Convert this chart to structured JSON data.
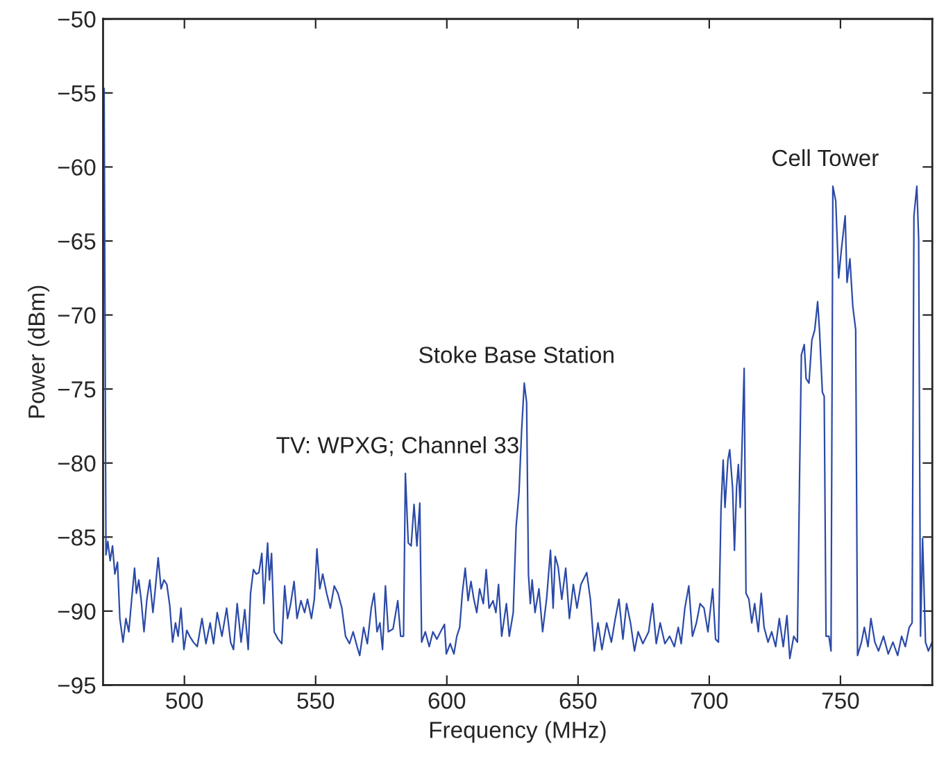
{
  "chart_data": {
    "type": "line",
    "xlabel": "Frequency (MHz)",
    "ylabel": "Power (dBm)",
    "xlim": [
      469,
      785
    ],
    "ylim": [
      -95,
      -50
    ],
    "xticks": [
      500,
      550,
      600,
      650,
      700,
      750
    ],
    "yticks": [
      -95,
      -90,
      -85,
      -80,
      -75,
      -70,
      -65,
      -60,
      -55,
      -50
    ],
    "grid": false,
    "legend": false,
    "marker": "none",
    "line_style": "solid",
    "annotations": [
      {
        "text": "TV: WPXG; Channel 33",
        "x": 584.2,
        "y": -80.7
      },
      {
        "text": "Stoke Base Station",
        "x": 629.5,
        "y": -74.6
      },
      {
        "text": "Cell Tower",
        "x": 747.1,
        "y": -61.3
      }
    ],
    "series": [
      {
        "color": "#2b4aa8",
        "x": [
          469.4,
          470.1,
          470.8,
          471.7,
          472.6,
          473.5,
          474.5,
          475.4,
          476.6,
          477.7,
          478.8,
          479.9,
          481.0,
          481.7,
          482.6,
          483.5,
          484.6,
          485.7,
          486.8,
          488.0,
          488.9,
          490.0,
          491.1,
          492.2,
          493.3,
          494.4,
          495.5,
          496.6,
          497.6,
          498.7,
          499.8,
          500.9,
          502.0,
          503.4,
          504.9,
          506.7,
          508.2,
          509.8,
          511.1,
          512.5,
          514.3,
          516.1,
          517.6,
          518.7,
          520.1,
          521.6,
          523.0,
          524.3,
          525.2,
          526.3,
          527.4,
          528.4,
          529.5,
          530.3,
          531.7,
          532.4,
          533.2,
          534.2,
          535.7,
          537.1,
          538.2,
          539.3,
          540.4,
          541.8,
          542.9,
          544.4,
          545.8,
          546.9,
          548.4,
          549.5,
          550.5,
          551.6,
          552.7,
          554.2,
          555.6,
          557.1,
          558.5,
          560.0,
          561.4,
          562.9,
          564.3,
          565.8,
          566.8,
          568.3,
          569.7,
          571.2,
          572.3,
          573.4,
          574.5,
          575.5,
          576.6,
          577.7,
          579.5,
          581.3,
          582.4,
          583.5,
          584.2,
          585.3,
          586.4,
          587.5,
          588.6,
          589.7,
          590.4,
          591.8,
          593.3,
          594.7,
          596.2,
          597.6,
          599.1,
          599.8,
          601.3,
          602.7,
          603.8,
          604.9,
          605.9,
          607.0,
          608.1,
          609.2,
          610.3,
          611.4,
          612.5,
          613.9,
          615.0,
          616.1,
          617.6,
          618.7,
          619.7,
          620.9,
          622.7,
          623.8,
          625.3,
          626.4,
          627.5,
          628.5,
          629.5,
          630.4,
          631.1,
          631.8,
          632.5,
          633.6,
          635.1,
          636.5,
          638.0,
          639.5,
          640.5,
          641.3,
          642.4,
          643.8,
          645.3,
          646.7,
          648.2,
          649.6,
          651.1,
          653.3,
          654.7,
          656.2,
          657.6,
          659.1,
          660.9,
          662.7,
          664.2,
          665.6,
          667.1,
          668.5,
          670.0,
          671.5,
          672.9,
          674.7,
          676.9,
          678.4,
          679.8,
          681.3,
          683.1,
          684.9,
          686.7,
          688.2,
          689.3,
          690.7,
          692.2,
          693.6,
          695.1,
          696.5,
          698.0,
          699.5,
          701.3,
          702.4,
          703.5,
          704.5,
          705.3,
          706.0,
          707.1,
          707.8,
          708.9,
          709.6,
          710.4,
          711.1,
          711.8,
          712.5,
          713.3,
          714.0,
          715.1,
          716.2,
          717.3,
          718.7,
          719.8,
          720.9,
          722.4,
          723.8,
          725.3,
          726.7,
          728.2,
          729.6,
          730.7,
          732.2,
          733.6,
          734.4,
          735.1,
          736.2,
          736.9,
          738.0,
          739.1,
          740.2,
          741.3,
          742.0,
          743.1,
          743.8,
          744.5,
          745.6,
          746.4,
          747.1,
          748.2,
          749.3,
          750.4,
          751.8,
          752.5,
          753.6,
          754.7,
          755.8,
          756.5,
          758.0,
          759.1,
          760.5,
          761.6,
          763.1,
          764.5,
          766.4,
          768.2,
          770.0,
          771.8,
          773.3,
          774.7,
          776.2,
          777.3,
          778.0,
          779.1,
          779.8,
          780.5,
          781.3,
          782.4,
          783.5,
          784.9
        ],
        "values": [
          -54.7,
          -86.2,
          -85.3,
          -86.6,
          -85.6,
          -87.5,
          -86.7,
          -90.5,
          -92.1,
          -90.5,
          -91.4,
          -89.2,
          -87.1,
          -88.8,
          -87.9,
          -89.2,
          -91.4,
          -89.2,
          -87.9,
          -90.1,
          -88.5,
          -86.4,
          -88.5,
          -87.9,
          -88.2,
          -89.6,
          -92.1,
          -90.8,
          -91.7,
          -89.8,
          -92.6,
          -91.3,
          -91.7,
          -92.1,
          -92.4,
          -90.5,
          -92.2,
          -90.8,
          -92.2,
          -90.1,
          -91.7,
          -89.8,
          -92.1,
          -92.6,
          -89.5,
          -92.1,
          -89.9,
          -92.6,
          -88.8,
          -87.2,
          -87.5,
          -87.4,
          -86.1,
          -89.5,
          -85.4,
          -87.9,
          -86.1,
          -91.4,
          -91.9,
          -92.2,
          -88.3,
          -90.5,
          -89.6,
          -88.0,
          -90.5,
          -89.3,
          -90.1,
          -89.2,
          -90.5,
          -89.2,
          -85.8,
          -88.5,
          -87.5,
          -88.8,
          -89.8,
          -88.3,
          -88.8,
          -89.8,
          -91.7,
          -92.2,
          -91.4,
          -92.4,
          -93.0,
          -91.1,
          -92.2,
          -89.8,
          -88.8,
          -91.4,
          -90.8,
          -92.6,
          -88.3,
          -91.4,
          -91.2,
          -89.3,
          -91.7,
          -91.7,
          -80.7,
          -85.4,
          -85.6,
          -82.8,
          -85.6,
          -82.7,
          -92.1,
          -91.4,
          -92.4,
          -91.4,
          -91.9,
          -91.4,
          -90.9,
          -92.9,
          -92.2,
          -92.9,
          -91.7,
          -91.1,
          -88.8,
          -87.1,
          -89.3,
          -88.0,
          -89.2,
          -90.1,
          -88.5,
          -89.5,
          -87.2,
          -89.8,
          -89.3,
          -90.1,
          -88.2,
          -91.7,
          -89.5,
          -91.7,
          -90.1,
          -84.3,
          -82.0,
          -77.8,
          -74.6,
          -75.9,
          -87.5,
          -89.5,
          -87.9,
          -90.1,
          -88.5,
          -91.4,
          -89.2,
          -85.9,
          -89.8,
          -86.3,
          -87.0,
          -89.2,
          -87.1,
          -90.5,
          -88.2,
          -89.8,
          -88.2,
          -87.4,
          -89.2,
          -92.7,
          -90.8,
          -92.6,
          -90.8,
          -92.1,
          -90.5,
          -89.2,
          -91.9,
          -89.5,
          -90.8,
          -92.7,
          -91.4,
          -92.2,
          -91.4,
          -89.5,
          -92.2,
          -90.8,
          -92.2,
          -91.7,
          -92.4,
          -91.1,
          -92.2,
          -89.8,
          -88.3,
          -91.7,
          -90.8,
          -89.5,
          -89.8,
          -91.4,
          -88.5,
          -91.9,
          -92.1,
          -83.0,
          -79.8,
          -83.0,
          -79.8,
          -79.1,
          -81.7,
          -85.9,
          -81.7,
          -80.1,
          -83.0,
          -78.8,
          -73.6,
          -88.8,
          -89.2,
          -90.8,
          -89.5,
          -91.4,
          -88.8,
          -91.1,
          -92.1,
          -91.4,
          -92.4,
          -90.5,
          -92.4,
          -90.3,
          -93.2,
          -91.7,
          -92.1,
          -81.1,
          -72.7,
          -72.0,
          -74.3,
          -74.6,
          -71.7,
          -71.0,
          -69.1,
          -71.0,
          -75.2,
          -75.5,
          -91.7,
          -91.7,
          -92.7,
          -61.3,
          -62.3,
          -67.5,
          -65.5,
          -63.3,
          -67.8,
          -66.2,
          -69.4,
          -71.0,
          -93.0,
          -92.1,
          -91.1,
          -92.4,
          -90.5,
          -92.1,
          -92.7,
          -91.7,
          -92.9,
          -92.1,
          -93.0,
          -91.7,
          -92.4,
          -91.1,
          -90.8,
          -63.3,
          -61.3,
          -64.9,
          -91.7,
          -85.1,
          -92.1,
          -92.7,
          -92.1
        ]
      }
    ]
  }
}
